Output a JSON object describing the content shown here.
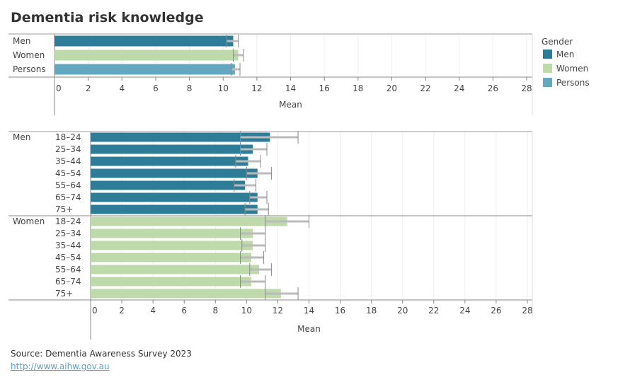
{
  "title": "Dementia risk knowledge",
  "source": "Source: Dementia Awareness Survey 2023",
  "link": "http://www.aihw.gov.au",
  "colors": {
    "Men": "#2e7d98",
    "Women": "#bfdaaa",
    "Persons": "#63a8c0",
    "error_bar": "#999999"
  },
  "legend": {
    "title": "Gender",
    "items": [
      "Men",
      "Women",
      "Persons"
    ],
    "placement": "right"
  },
  "chart_data": [
    {
      "type": "bar",
      "orientation": "horizontal",
      "xlabel": "Mean",
      "xlim": [
        0,
        28
      ],
      "xticks": [
        0,
        2,
        4,
        6,
        8,
        10,
        12,
        14,
        16,
        18,
        20,
        22,
        24,
        26,
        28
      ],
      "grid": true,
      "categories": [
        "Men",
        "Women",
        "Persons"
      ],
      "values": [
        10.6,
        10.9,
        10.7
      ],
      "error_low": [
        10.2,
        10.6,
        10.5
      ],
      "error_high": [
        10.9,
        11.2,
        11.0
      ]
    },
    {
      "type": "bar",
      "orientation": "horizontal",
      "xlabel": "Mean",
      "xlim": [
        0,
        28
      ],
      "xticks": [
        0,
        2,
        4,
        6,
        8,
        10,
        12,
        14,
        16,
        18,
        20,
        22,
        24,
        26,
        28
      ],
      "grid": true,
      "groups": [
        {
          "name": "Men",
          "categories": [
            "18–24",
            "25–34",
            "35–44",
            "45–54",
            "55–64",
            "65–74",
            "75+"
          ],
          "values": [
            11.5,
            10.4,
            10.1,
            10.7,
            9.9,
            10.7,
            10.7
          ],
          "error_low": [
            9.6,
            9.6,
            9.3,
            10.0,
            9.2,
            10.2,
            9.9
          ],
          "error_high": [
            13.3,
            11.3,
            10.9,
            11.6,
            10.6,
            11.3,
            11.4
          ]
        },
        {
          "name": "Women",
          "categories": [
            "18–24",
            "25–34",
            "35–44",
            "45–54",
            "55–64",
            "65–74",
            "75+"
          ],
          "values": [
            12.6,
            10.4,
            10.4,
            10.3,
            10.8,
            10.3,
            12.2
          ],
          "error_low": [
            11.2,
            9.6,
            9.7,
            9.6,
            10.2,
            9.6,
            11.2
          ],
          "error_high": [
            14.0,
            11.2,
            11.2,
            11.1,
            11.6,
            11.2,
            13.3
          ]
        }
      ]
    }
  ]
}
